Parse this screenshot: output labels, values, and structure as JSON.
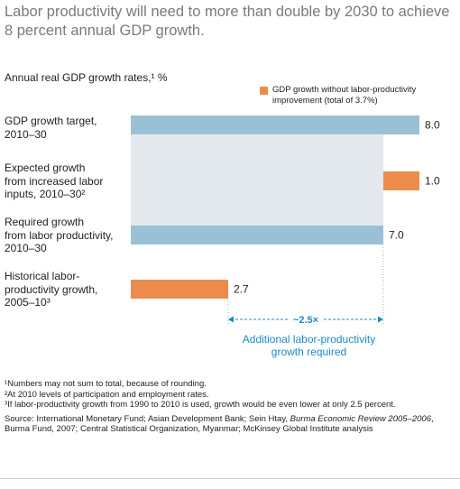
{
  "title": "Labor productivity will need to more than double by 2030 to achieve 8 percent annual GDP growth.",
  "subtitle": "Annual real GDP growth rates,¹ %",
  "legend_label": "GDP growth without labor-productivity improvement (total of 3.7%)",
  "colors": {
    "blue": "#9ac0d5",
    "orange": "#ec8c4c",
    "shade": "#e4e9ee",
    "accent": "#1a8bc4"
  },
  "row_labels": [
    "GDP growth target,\n2010–30",
    "Expected growth\nfrom increased labor\ninputs, 2010–30²",
    "Required growth\nfrom labor productivity,\n2010–30",
    "Historical labor-\nproductivity growth,\n2005–10³"
  ],
  "multiplier_label": "~2.5×",
  "bracket_caption": "Additional labor-productivity\ngrowth required",
  "footnotes": [
    "¹Numbers may not sum to total, because of rounding.",
    "²At 2010 levels of participation and employment rates.",
    "³If labor-productivity growth from 1990 to 2010 is used, growth would be even lower at only 2.5 percent."
  ],
  "source": "Source: International Monetary Fund; Asian Development Bank; Sein Htay, Burma Economic Review 2005–2006, Burma Fund, 2007; Central Statistical Organization, Myanmar; McKinsey Global Institute analysis",
  "chart_data": {
    "type": "bar",
    "orientation": "horizontal",
    "title": "Labor productivity will need to more than double by 2030 to achieve 8 percent annual GDP growth.",
    "subtitle": "Annual real GDP growth rates,¹ %",
    "categories": [
      "GDP growth target, 2010–30",
      "Expected growth from increased labor inputs, 2010–30²",
      "Required growth from labor productivity, 2010–30",
      "Historical labor-productivity growth, 2005–10³"
    ],
    "bars": [
      {
        "category": "GDP growth target, 2010–30",
        "start": 0,
        "value": 8.0,
        "label": "8.0",
        "color": "blue"
      },
      {
        "category": "Expected growth from increased labor inputs, 2010–30²",
        "start": 7.0,
        "value": 1.0,
        "label": "1.0",
        "color": "orange"
      },
      {
        "category": "Required growth from labor productivity, 2010–30",
        "start": 0,
        "value": 7.0,
        "label": "7.0",
        "color": "blue"
      },
      {
        "category": "Historical labor-productivity growth, 2005–10³",
        "start": 0,
        "value": 2.7,
        "label": "2.7",
        "color": "orange"
      }
    ],
    "legend": [
      {
        "label": "GDP growth without labor-productivity improvement (total of 3.7%)",
        "color": "orange"
      }
    ],
    "annotation": {
      "text": "~2.5×",
      "from": 2.7,
      "to": 7.0,
      "caption": "Additional labor-productivity growth required"
    },
    "xlim": [
      0,
      8.0
    ],
    "grid": false
  }
}
